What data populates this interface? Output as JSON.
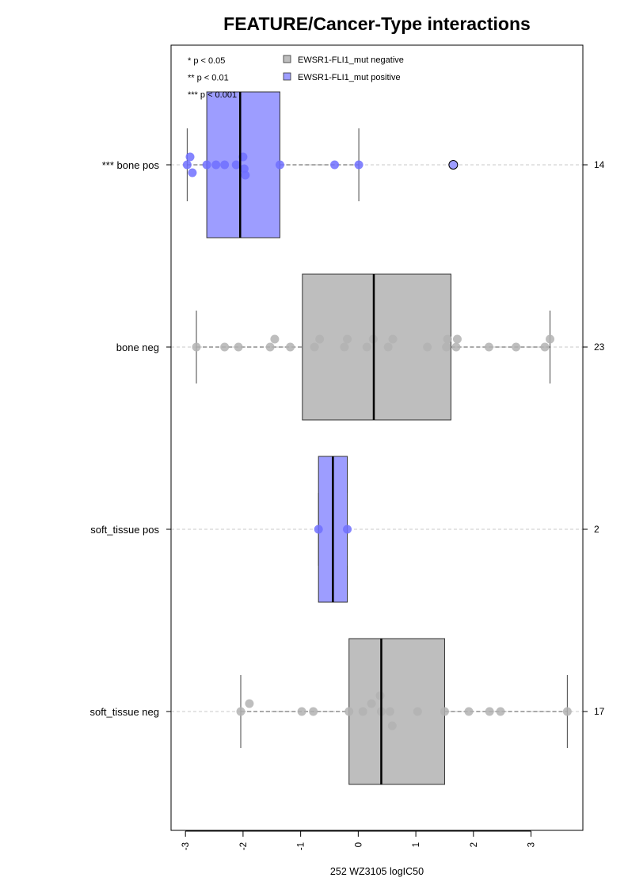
{
  "chart_data": {
    "type": "boxplot",
    "title": "FEATURE/Cancer-Type interactions",
    "xlabel": "252 WZ3105 logIC50",
    "xlim": [
      -3.25,
      3.9
    ],
    "x_ticks": [
      -3,
      -2,
      -1,
      0,
      1,
      2,
      3
    ],
    "x_tick_labels": [
      "-3",
      "-2",
      "-1",
      "0",
      "1",
      "2",
      "3"
    ],
    "orientation": "horizontal",
    "significance_legend": [
      "* p < 0.05",
      "** p < 0.01",
      "*** p < 0.001"
    ],
    "legend": [
      {
        "label": "EWSR1-FLI1_mut negative",
        "color": "#bebebe"
      },
      {
        "label": "EWSR1-FLI1_mut positive",
        "color": "#9d9dff"
      }
    ],
    "colors": {
      "negative_box": "#bebebe",
      "positive_box": "#9d9dff",
      "negative_points": "#b3b3b3",
      "positive_points": "#7070ff"
    },
    "groups": [
      {
        "label": "*** bone pos",
        "n": "14",
        "status": "positive",
        "whisker_low": -2.97,
        "q1": -2.63,
        "median": -2.05,
        "q3": -1.36,
        "whisker_high": 0.01,
        "outliers": [
          1.65
        ],
        "points": [
          [
            -2.97,
            0
          ],
          [
            -2.92,
            1
          ],
          [
            -2.88,
            -1
          ],
          [
            -2.63,
            0
          ],
          [
            -2.47,
            0
          ],
          [
            -2.32,
            0
          ],
          [
            -2.12,
            0
          ],
          [
            -2.0,
            1
          ],
          [
            -1.98,
            -0.5
          ],
          [
            -1.96,
            -1.3
          ],
          [
            -1.36,
            0
          ],
          [
            -0.41,
            0
          ],
          [
            0.01,
            0
          ]
        ]
      },
      {
        "label": "bone neg",
        "n": "23",
        "status": "negative",
        "whisker_low": -2.81,
        "q1": -0.97,
        "median": 0.27,
        "q3": 1.61,
        "whisker_high": 3.33,
        "outliers": [],
        "points": [
          [
            -2.81,
            0
          ],
          [
            -2.32,
            0
          ],
          [
            -2.08,
            0
          ],
          [
            -1.53,
            0
          ],
          [
            -1.45,
            1
          ],
          [
            -1.18,
            0
          ],
          [
            -0.76,
            0
          ],
          [
            -0.67,
            1
          ],
          [
            -0.24,
            0
          ],
          [
            -0.19,
            1
          ],
          [
            0.15,
            0
          ],
          [
            0.26,
            1
          ],
          [
            0.52,
            0
          ],
          [
            0.6,
            1
          ],
          [
            1.2,
            0
          ],
          [
            1.53,
            0
          ],
          [
            1.55,
            1
          ],
          [
            1.7,
            0
          ],
          [
            1.72,
            1
          ],
          [
            2.27,
            0
          ],
          [
            2.74,
            0
          ],
          [
            3.24,
            0
          ],
          [
            3.33,
            1
          ]
        ]
      },
      {
        "label": "soft_tissue pos",
        "n": "2",
        "status": "positive",
        "whisker_low": -0.69,
        "q1": -0.69,
        "median": -0.44,
        "q3": -0.19,
        "whisker_high": -0.19,
        "outliers": [],
        "points": [
          [
            -0.69,
            0
          ],
          [
            -0.19,
            0
          ]
        ]
      },
      {
        "label": "soft_tissue neg",
        "n": "17",
        "status": "negative",
        "whisker_low": -2.04,
        "q1": -0.16,
        "median": 0.4,
        "q3": 1.5,
        "whisker_high": 3.63,
        "outliers": [],
        "points": [
          [
            -2.04,
            0
          ],
          [
            -1.89,
            1
          ],
          [
            -0.98,
            0
          ],
          [
            -0.78,
            0
          ],
          [
            -0.16,
            0
          ],
          [
            0.08,
            0
          ],
          [
            0.23,
            1
          ],
          [
            0.38,
            2
          ],
          [
            0.4,
            0
          ],
          [
            0.55,
            0
          ],
          [
            0.59,
            -1.8
          ],
          [
            1.03,
            0
          ],
          [
            1.5,
            0
          ],
          [
            1.92,
            0
          ],
          [
            2.28,
            0
          ],
          [
            2.47,
            0
          ],
          [
            3.63,
            0
          ]
        ]
      }
    ]
  }
}
